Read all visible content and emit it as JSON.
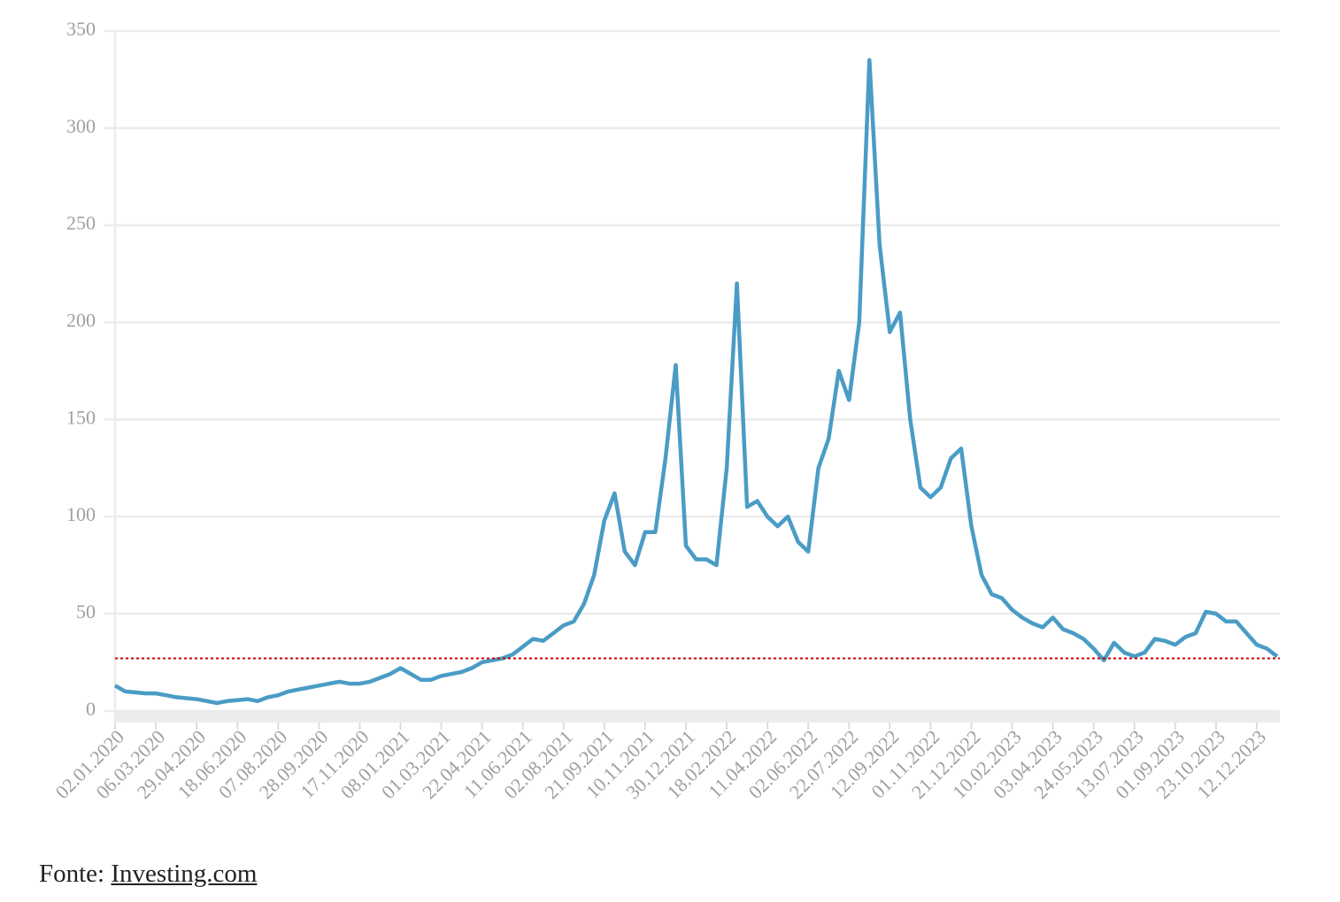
{
  "chart_data": {
    "type": "line",
    "categories": [
      "02.01.2020",
      null,
      null,
      null,
      "06.03.2020",
      null,
      null,
      null,
      "29.04.2020",
      null,
      null,
      null,
      "18.06.2020",
      null,
      null,
      null,
      "07.08.2020",
      null,
      null,
      null,
      "28.09.2020",
      null,
      null,
      null,
      "17.11.2020",
      null,
      null,
      null,
      "08.01.2021",
      null,
      null,
      null,
      "01.03.2021",
      null,
      null,
      null,
      "22.04.2021",
      null,
      null,
      null,
      "11.06.2021",
      null,
      null,
      null,
      "02.08.2021",
      null,
      null,
      null,
      "21.09.2021",
      null,
      null,
      null,
      "10.11.2021",
      null,
      null,
      null,
      "30.12.2021",
      null,
      null,
      null,
      "18.02.2022",
      null,
      null,
      null,
      "11.04.2022",
      null,
      null,
      null,
      "02.06.2022",
      null,
      null,
      null,
      "22.07.2022",
      null,
      null,
      null,
      "12.09.2022",
      null,
      null,
      null,
      "01.11.2022",
      null,
      null,
      null,
      "21.12.2022",
      null,
      null,
      null,
      "10.02.2023",
      null,
      null,
      null,
      "03.04.2023",
      null,
      null,
      null,
      "24.05.2023",
      null,
      null,
      null,
      "13.07.2023",
      null,
      null,
      null,
      "01.09.2023",
      null,
      null,
      null,
      "23.10.2023",
      null,
      null,
      null,
      "12.12.2023",
      null,
      null
    ],
    "series": [
      {
        "color": "#4a9cc5",
        "values": [
          13,
          10,
          9.5,
          9,
          9,
          8,
          7,
          6.5,
          6,
          5,
          4,
          5,
          5.5,
          6,
          5,
          7,
          8,
          10,
          11,
          12,
          13,
          14,
          15,
          14,
          14,
          15,
          17,
          19,
          22,
          19,
          16,
          16,
          18,
          19,
          20,
          22,
          25,
          26,
          27,
          29,
          33,
          37,
          36,
          40,
          44,
          46,
          55,
          70,
          98,
          112,
          82,
          75,
          92,
          92,
          130,
          178,
          85,
          78,
          78,
          75,
          125,
          220,
          105,
          108,
          100,
          95,
          100,
          87,
          82,
          125,
          140,
          175,
          160,
          200,
          335,
          240,
          195,
          205,
          150,
          115,
          110,
          115,
          130,
          135,
          95,
          70,
          60,
          58,
          52,
          48,
          45,
          43,
          48,
          42,
          40,
          37,
          32,
          26,
          35,
          30,
          28,
          30,
          37,
          36,
          34,
          38,
          40,
          51,
          50,
          46,
          46,
          40,
          34,
          32,
          28
        ]
      }
    ],
    "reference_line": {
      "value": 27,
      "color": "#cc0000"
    },
    "ylim": [
      -6,
      350
    ],
    "yticks": [
      0,
      50,
      100,
      150,
      200,
      250,
      300,
      350
    ],
    "grid": true,
    "source_label": "Fonte:",
    "source": "Investing.com"
  }
}
